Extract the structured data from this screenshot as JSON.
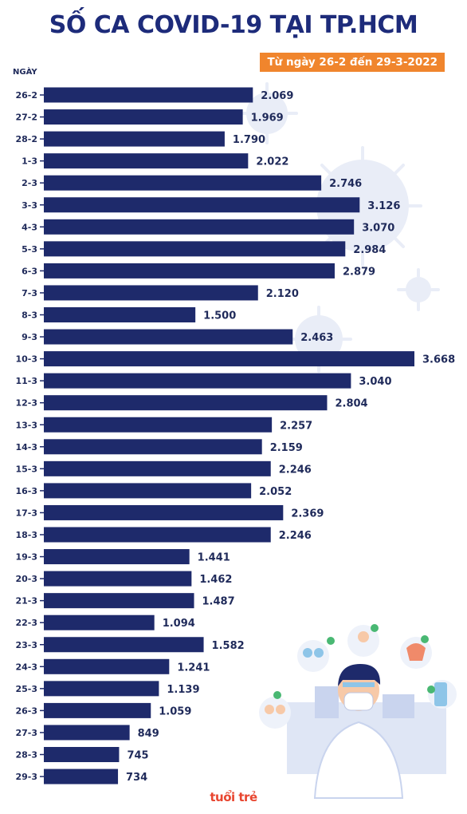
{
  "header": {
    "title": "SỐ CA COVID-19 TẠI TP.HCM",
    "subtitle": "Từ ngày 26-2 đến 29-3-2022",
    "column_label": "NGÀY"
  },
  "footer": {
    "brand": "tuổi trẻ"
  },
  "colors": {
    "bar": "#1e2a6b",
    "title": "#1d2b7a",
    "accent": "#f0852d",
    "value_text": "#1f2a5a",
    "virus": "#e7ebf6",
    "brand": "#e8452f"
  },
  "chart_data": {
    "type": "bar",
    "orientation": "horizontal",
    "title": "SỐ CA COVID-19 TẠI TP.HCM",
    "subtitle": "Từ ngày 26-2 đến 29-3-2022",
    "ylabel": "NGÀY",
    "xlabel": "",
    "categories": [
      "26-2",
      "27-2",
      "28-2",
      "1-3",
      "2-3",
      "3-3",
      "4-3",
      "5-3",
      "6-3",
      "7-3",
      "8-3",
      "9-3",
      "10-3",
      "11-3",
      "12-3",
      "13-3",
      "14-3",
      "15-3",
      "16-3",
      "17-3",
      "18-3",
      "19-3",
      "20-3",
      "21-3",
      "22-3",
      "23-3",
      "24-3",
      "25-3",
      "26-3",
      "27-3",
      "28-3",
      "29-3"
    ],
    "values": [
      2069,
      1969,
      1790,
      2022,
      2746,
      3126,
      3070,
      2984,
      2879,
      2120,
      1500,
      2463,
      3668,
      3040,
      2804,
      2257,
      2159,
      2246,
      2052,
      2369,
      2246,
      1441,
      1462,
      1487,
      1094,
      1582,
      1241,
      1139,
      1059,
      849,
      745,
      734
    ],
    "value_labels": [
      "2.069",
      "1.969",
      "1.790",
      "2.022",
      "2.746",
      "3.126",
      "3.070",
      "2.984",
      "2.879",
      "2.120",
      "1.500",
      "2.463",
      "3.668",
      "3.040",
      "2.804",
      "2.257",
      "2.159",
      "2.246",
      "2.052",
      "2.369",
      "2.246",
      "1.441",
      "1.462",
      "1.487",
      "1.094",
      "1.582",
      "1.241",
      "1.139",
      "1.059",
      "849",
      "745",
      "734"
    ],
    "xlim": [
      0,
      3668
    ],
    "grid": false,
    "legend": "none"
  }
}
